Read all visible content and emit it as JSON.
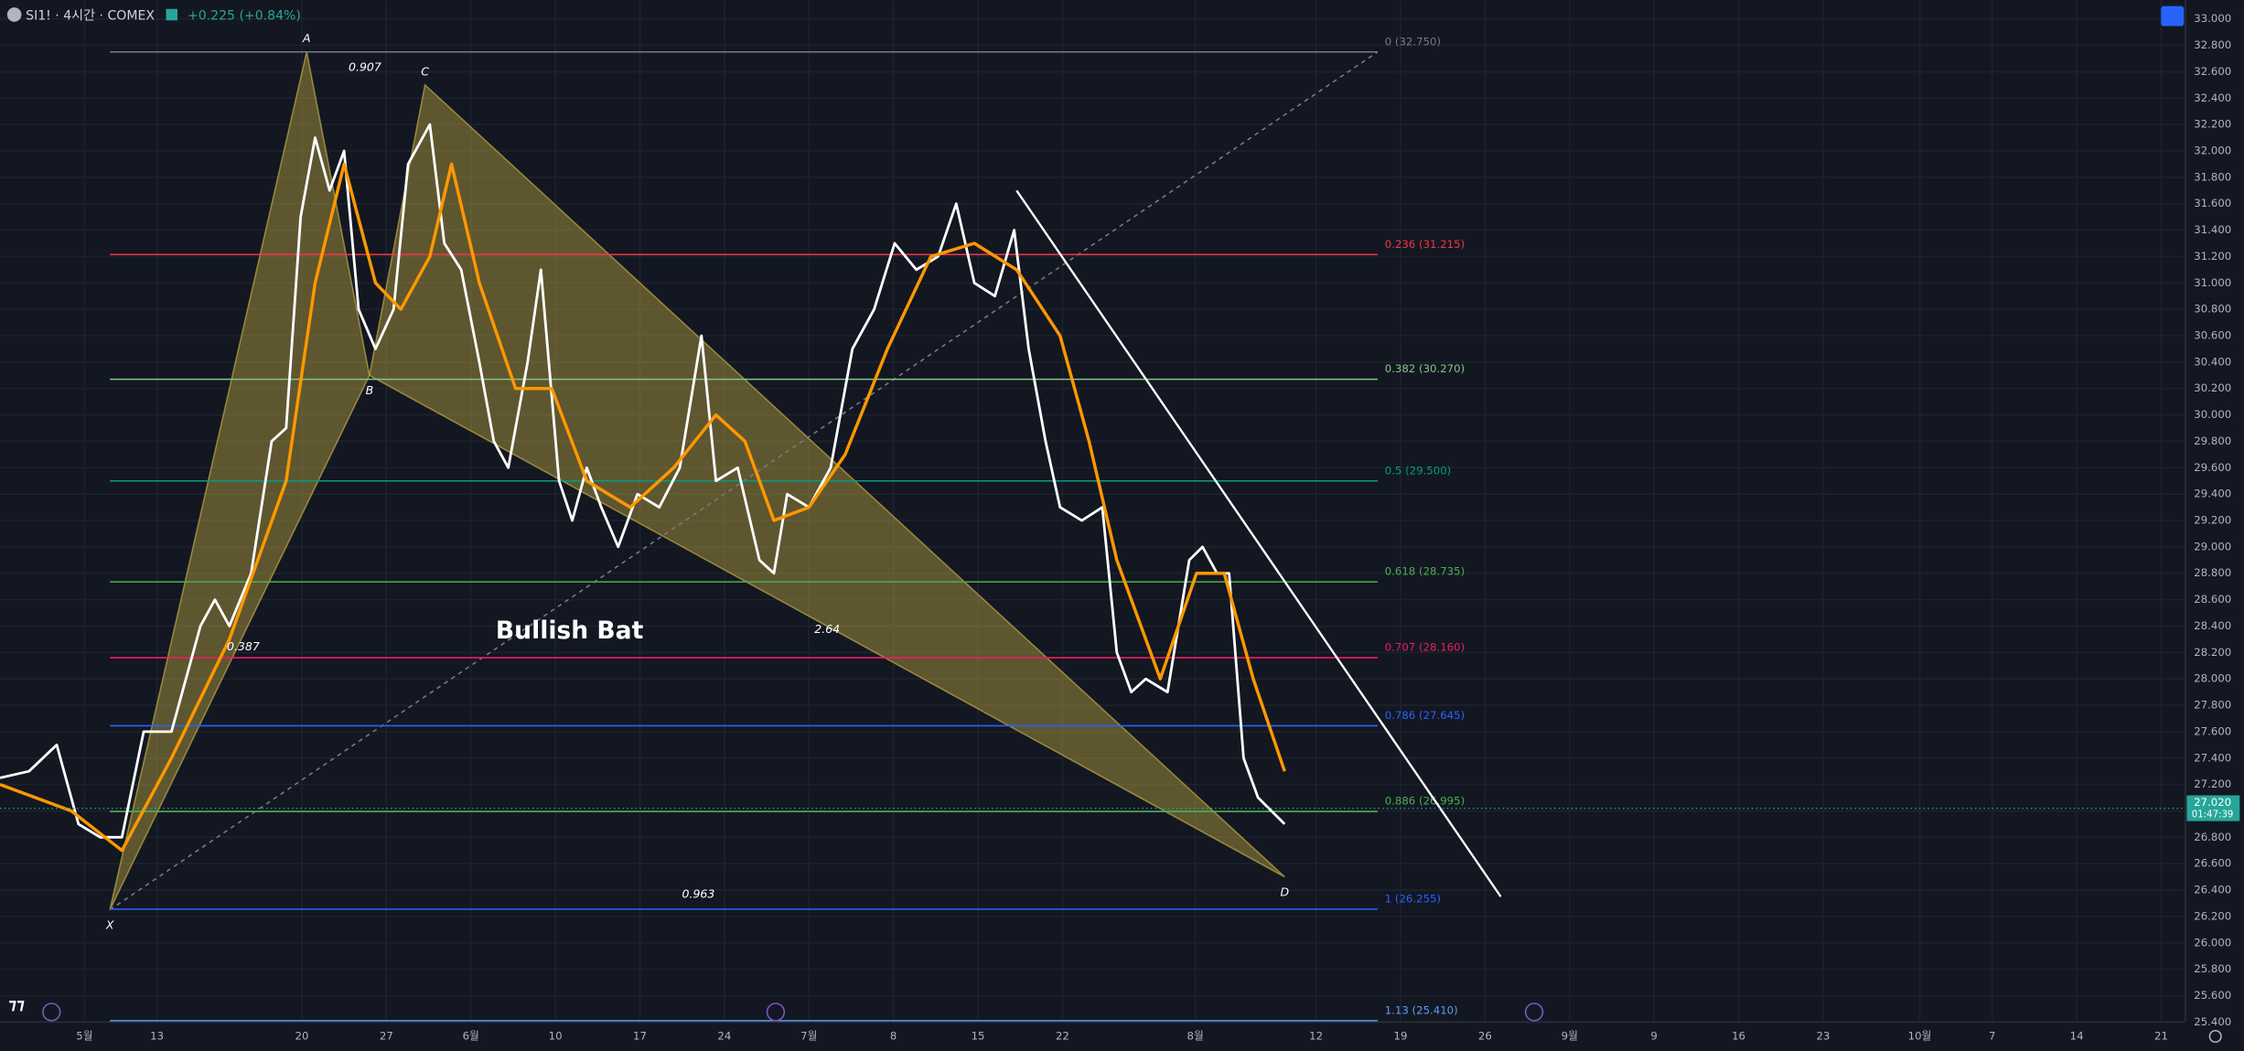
{
  "chart_data": {
    "type": "line",
    "header": {
      "symbol": "SI1! · 4시간 · COMEX",
      "change": "+0.225 (+0.84%)"
    },
    "pattern_title": "Bullish Bat",
    "ratios": [
      "0.907",
      "0.387",
      "2.64",
      "0.963"
    ],
    "points": [
      {
        "label": "X",
        "x": 9.1,
        "y": 26.25
      },
      {
        "label": "A",
        "x": 25.4,
        "y": 32.75
      },
      {
        "label": "B",
        "x": 30.6,
        "y": 30.3
      },
      {
        "label": "C",
        "x": 35.2,
        "y": 32.5
      },
      {
        "label": "D",
        "x": 106.4,
        "y": 26.5
      }
    ],
    "fib_levels": [
      {
        "label": "0 (32.750)",
        "value": 32.75,
        "color": "#787b86"
      },
      {
        "label": "0.236 (31.215)",
        "value": 31.215,
        "color": "#f23645"
      },
      {
        "label": "0.382 (30.270)",
        "value": 30.27,
        "color": "#81c784"
      },
      {
        "label": "0.5 (29.500)",
        "value": 29.5,
        "color": "#089981"
      },
      {
        "label": "0.618 (28.735)",
        "value": 28.735,
        "color": "#4caf50"
      },
      {
        "label": "0.707 (28.160)",
        "value": 28.16,
        "color": "#e91e63"
      },
      {
        "label": "0.786 (27.645)",
        "value": 27.645,
        "color": "#2962ff"
      },
      {
        "label": "0.886 (26.995)",
        "value": 26.995,
        "color": "#4caf50"
      },
      {
        "label": "1 (26.255)",
        "value": 26.255,
        "color": "#2962ff"
      },
      {
        "label": "1.13 (25.410)",
        "value": 25.41,
        "color": "#5b9cf6"
      }
    ],
    "fib_x": [
      9.1,
      114.1
    ],
    "trendline": {
      "x": [
        84.2,
        124.3
      ],
      "y": [
        31.7,
        26.35
      ],
      "color": "#ffffff"
    },
    "last_price": {
      "value": 27.02,
      "label": "27.020",
      "countdown": "01:47:39",
      "color": "#26a69a"
    },
    "series": [
      {
        "color": "#ffffff",
        "x": [
          0,
          2.4,
          4.7,
          6.5,
          8.3,
          10.1,
          11.9,
          14.2,
          16.6,
          17.8,
          19.0,
          20.8,
          22.5,
          23.7,
          24.9,
          26.1,
          27.3,
          28.5,
          29.7,
          31.1,
          32.6,
          33.8,
          35.6,
          36.8,
          38.2,
          39.7,
          40.9,
          42.1,
          43.7,
          44.8,
          46.3,
          47.4,
          48.6,
          49.8,
          51.2,
          52.8,
          54.6,
          56.3,
          58.1,
          59.3,
          61.1,
          62.9,
          64.1,
          65.2,
          67.0,
          68.8,
          70.6,
          72.4,
          74.1,
          75.9,
          77.7,
          79.2,
          80.7,
          82.4,
          84.0,
          85.2,
          86.6,
          87.8,
          89.6,
          91.3,
          92.5,
          93.7,
          94.9,
          96.7,
          98.5,
          99.6,
          100.8,
          101.8,
          103.0,
          104.2,
          105.3,
          106.4
        ],
        "values": [
          27.25,
          27.3,
          27.5,
          26.9,
          26.8,
          26.8,
          27.6,
          27.6,
          28.4,
          28.6,
          28.4,
          28.8,
          29.8,
          29.9,
          31.5,
          32.1,
          31.7,
          32.0,
          30.8,
          30.5,
          30.8,
          31.9,
          32.2,
          31.3,
          31.1,
          30.4,
          29.8,
          29.6,
          30.4,
          31.1,
          29.5,
          29.2,
          29.6,
          29.3,
          29.0,
          29.4,
          29.3,
          29.6,
          30.6,
          29.5,
          29.6,
          28.9,
          28.8,
          29.4,
          29.3,
          29.6,
          30.5,
          30.8,
          31.3,
          31.1,
          31.2,
          31.6,
          31.0,
          30.9,
          31.4,
          30.5,
          29.8,
          29.3,
          29.2,
          29.3,
          28.2,
          27.9,
          28.0,
          27.9,
          28.9,
          29.0,
          28.8,
          28.8,
          27.4,
          27.1,
          27.0,
          26.9
        ]
      },
      {
        "color": "#ff9800",
        "x": [
          0,
          5.9,
          10.1,
          14.2,
          19.0,
          23.7,
          26.1,
          28.5,
          31.1,
          33.2,
          35.6,
          37.4,
          39.7,
          42.7,
          45.7,
          48.6,
          52.2,
          55.8,
          59.3,
          61.7,
          64.1,
          67.0,
          70.0,
          73.5,
          77.1,
          80.7,
          84.2,
          87.8,
          90.2,
          92.5,
          96.1,
          99.1,
          101.4,
          103.8,
          106.4
        ],
        "values": [
          27.2,
          27.0,
          26.7,
          27.4,
          28.3,
          29.5,
          31.0,
          31.9,
          31.0,
          30.8,
          31.2,
          31.9,
          31.0,
          30.2,
          30.2,
          29.5,
          29.3,
          29.6,
          30.0,
          29.8,
          29.2,
          29.3,
          29.7,
          30.5,
          31.2,
          31.3,
          31.1,
          30.6,
          29.8,
          28.9,
          28.0,
          28.8,
          28.8,
          28.0,
          27.3
        ]
      }
    ],
    "xlim": [
      0,
      181
    ],
    "ylim": [
      25.4,
      33.0
    ],
    "xticks": [
      {
        "value": 7,
        "label": "5월"
      },
      13,
      {
        "value": 25,
        "label": "20"
      },
      {
        "value": 32,
        "label": "27"
      },
      {
        "value": 39,
        "label": "6월"
      },
      {
        "value": 46,
        "label": "10"
      },
      {
        "value": 53,
        "label": "17"
      },
      {
        "value": 60,
        "label": "24"
      },
      {
        "value": 67,
        "label": "7월"
      },
      {
        "value": 74,
        "label": "8"
      },
      {
        "value": 81,
        "label": "15"
      },
      {
        "value": 88,
        "label": "22"
      },
      {
        "value": 99,
        "label": "8월"
      },
      {
        "value": 109,
        "label": "12"
      },
      {
        "value": 116,
        "label": "19"
      },
      {
        "value": 123,
        "label": "26"
      },
      {
        "value": 130,
        "label": "9월"
      },
      {
        "value": 137,
        "label": "9"
      },
      {
        "value": 144,
        "label": "16"
      },
      {
        "value": 151,
        "label": "23"
      },
      {
        "value": 159,
        "label": "10월"
      },
      {
        "value": 165,
        "label": "7"
      },
      {
        "value": 172,
        "label": "14"
      },
      {
        "value": 179,
        "label": "21"
      }
    ],
    "yticks": [
      {
        "value": 25.4,
        "label": "25.400"
      },
      {
        "value": 25.6,
        "label": "25.600"
      },
      {
        "value": 25.8,
        "label": "25.800"
      },
      {
        "value": 26.0,
        "label": "26.000"
      },
      {
        "value": 26.2,
        "label": "26.200"
      },
      {
        "value": 26.4,
        "label": "26.400"
      },
      {
        "value": 26.6,
        "label": "26.600"
      },
      {
        "value": 26.8,
        "label": "26.800"
      },
      {
        "value": 27.0,
        "label": "27.000"
      },
      {
        "value": 27.2,
        "label": "27.200"
      },
      {
        "value": 27.4,
        "label": "27.400"
      },
      {
        "value": 27.6,
        "label": "27.600"
      },
      {
        "value": 27.8,
        "label": "27.800"
      },
      {
        "value": 28.0,
        "label": "28.000"
      },
      {
        "value": 28.2,
        "label": "28.200"
      },
      {
        "value": 28.4,
        "label": "28.400"
      },
      {
        "value": 28.6,
        "label": "28.600"
      },
      {
        "value": 28.8,
        "label": "28.800"
      },
      {
        "value": 29.0,
        "label": "29.000"
      },
      {
        "value": 29.2,
        "label": "29.200"
      },
      {
        "value": 29.4,
        "label": "29.400"
      },
      {
        "value": 29.6,
        "label": "29.600"
      },
      {
        "value": 29.8,
        "label": "29.800"
      },
      {
        "value": 30.0,
        "label": "30.000"
      },
      {
        "value": 30.2,
        "label": "30.200"
      },
      {
        "value": 30.4,
        "label": "30.400"
      },
      {
        "value": 30.6,
        "label": "30.600"
      },
      {
        "value": 30.8,
        "label": "30.800"
      },
      {
        "value": 31.0,
        "label": "31.000"
      },
      {
        "value": 31.2,
        "label": "31.200"
      },
      {
        "value": 31.4,
        "label": "31.400"
      },
      {
        "value": 31.6,
        "label": "31.600"
      },
      {
        "value": 31.8,
        "label": "31.800"
      },
      {
        "value": 32.0,
        "label": "32.000"
      },
      {
        "value": 32.2,
        "label": "32.200"
      },
      {
        "value": 32.4,
        "label": "32.400"
      },
      {
        "value": 32.6,
        "label": "32.600"
      },
      {
        "value": 32.8,
        "label": "32.800"
      },
      {
        "value": 33.0,
        "label": "33.000"
      }
    ],
    "grid": true
  }
}
